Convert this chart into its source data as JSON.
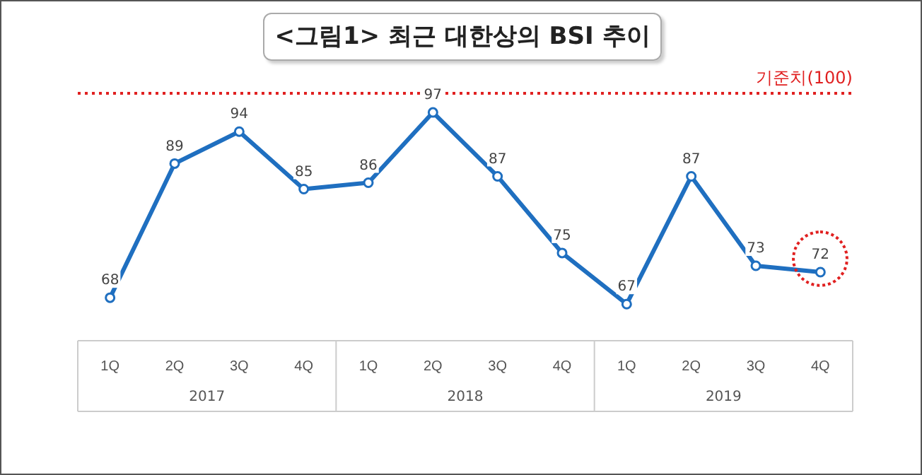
{
  "chart_data": {
    "type": "line",
    "title": "<그림1> 최근 대한상의 BSI 추이",
    "categories": [
      "1Q",
      "2Q",
      "3Q",
      "4Q",
      "1Q",
      "2Q",
      "3Q",
      "4Q",
      "1Q",
      "2Q",
      "3Q",
      "4Q"
    ],
    "series": [
      {
        "color": "#1f6fc0",
        "values": [
          68,
          89,
          94,
          85,
          86,
          97,
          87,
          75,
          67,
          87,
          73,
          72
        ]
      }
    ],
    "data_labels": true,
    "marker": "circle",
    "line_style": "solid",
    "grid": false,
    "legend": false,
    "ref_lines": [
      {
        "axis": "y",
        "value": 100,
        "label": "기준치(100)",
        "color": "#e02020",
        "line_style": "dotted"
      }
    ],
    "annotations": [
      "2017",
      "2018",
      "2019"
    ]
  }
}
